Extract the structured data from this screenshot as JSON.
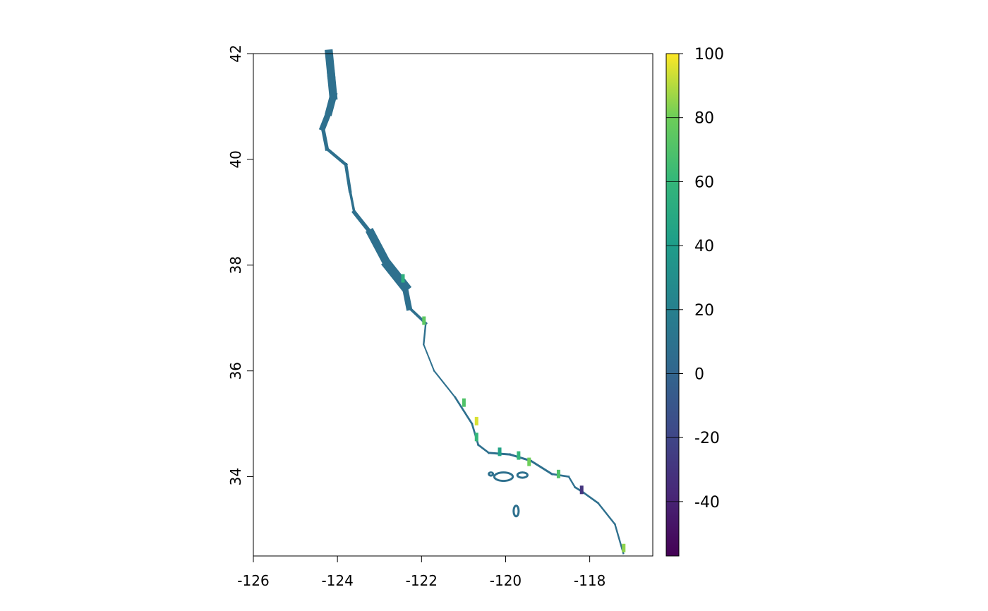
{
  "chart_data": {
    "type": "heatmap",
    "x_axis": {
      "range": [
        -126,
        -116.5
      ],
      "ticks": [
        -126,
        -124,
        -122,
        -120,
        -118
      ],
      "tick_labels": [
        "-126",
        "-124",
        "-122",
        "-120",
        "-118"
      ]
    },
    "y_axis": {
      "range": [
        32.5,
        42
      ],
      "ticks": [
        34,
        36,
        38,
        40,
        42
      ],
      "tick_labels": [
        "34",
        "36",
        "38",
        "40",
        "42"
      ]
    },
    "colorbar": {
      "range": [
        -57,
        100
      ],
      "ticks": [
        -40,
        -20,
        0,
        20,
        40,
        60,
        80,
        100
      ],
      "tick_labels": [
        "-40",
        "-20",
        "0",
        "20",
        "40",
        "60",
        "80",
        "100"
      ],
      "colormap": "viridis"
    },
    "coastline_path_lonlat": [
      [
        -124.2,
        42.0
      ],
      [
        -124.15,
        41.6
      ],
      [
        -124.1,
        41.2
      ],
      [
        -124.2,
        40.9
      ],
      [
        -124.35,
        40.6
      ],
      [
        -124.25,
        40.2
      ],
      [
        -123.8,
        39.9
      ],
      [
        -123.7,
        39.4
      ],
      [
        -123.6,
        39.0
      ],
      [
        -123.2,
        38.6
      ],
      [
        -122.8,
        38.0
      ],
      [
        -122.4,
        37.6
      ],
      [
        -122.3,
        37.2
      ],
      [
        -121.9,
        36.9
      ],
      [
        -121.95,
        36.5
      ],
      [
        -121.7,
        36.0
      ],
      [
        -121.2,
        35.5
      ],
      [
        -120.8,
        35.0
      ],
      [
        -120.65,
        34.6
      ],
      [
        -120.4,
        34.45
      ],
      [
        -119.9,
        34.42
      ],
      [
        -119.4,
        34.3
      ],
      [
        -118.9,
        34.05
      ],
      [
        -118.5,
        34.0
      ],
      [
        -118.35,
        33.8
      ],
      [
        -118.15,
        33.7
      ],
      [
        -117.8,
        33.5
      ],
      [
        -117.4,
        33.1
      ],
      [
        -117.2,
        32.55
      ]
    ],
    "band_width_deg": [
      0.18,
      0.2,
      0.18,
      0.16,
      0.12,
      0.06,
      0.09,
      0.06,
      0.06,
      0.13,
      0.26,
      0.2,
      0.08,
      0.05,
      0.03,
      0.03,
      0.04,
      0.05,
      0.04,
      0.05,
      0.05,
      0.05,
      0.05,
      0.04,
      0.04,
      0.05,
      0.04,
      0.04,
      0.04
    ],
    "band_value": 8,
    "highlights": [
      {
        "lon": -122.45,
        "lat": 37.75,
        "value": 55
      },
      {
        "lon": -121.95,
        "lat": 36.95,
        "value": 75
      },
      {
        "lon": -121.0,
        "lat": 35.4,
        "value": 70
      },
      {
        "lon": -120.7,
        "lat": 35.05,
        "value": 95
      },
      {
        "lon": -120.7,
        "lat": 34.75,
        "value": 60
      },
      {
        "lon": -120.15,
        "lat": 34.47,
        "value": 45
      },
      {
        "lon": -119.7,
        "lat": 34.4,
        "value": 60
      },
      {
        "lon": -119.45,
        "lat": 34.28,
        "value": 80
      },
      {
        "lon": -118.75,
        "lat": 34.05,
        "value": 70
      },
      {
        "lon": -118.2,
        "lat": 33.75,
        "value": -30
      },
      {
        "lon": -117.2,
        "lat": 32.65,
        "value": 85
      }
    ],
    "islands": [
      {
        "lon": -120.05,
        "lat": 34.0,
        "rx": 0.22,
        "ry": 0.08,
        "value": 8
      },
      {
        "lon": -119.6,
        "lat": 34.03,
        "rx": 0.12,
        "ry": 0.05,
        "value": 8
      },
      {
        "lon": -120.35,
        "lat": 34.05,
        "rx": 0.05,
        "ry": 0.03,
        "value": 8
      },
      {
        "lon": -119.75,
        "lat": 33.35,
        "rx": 0.06,
        "ry": 0.1,
        "value": 8
      }
    ]
  }
}
